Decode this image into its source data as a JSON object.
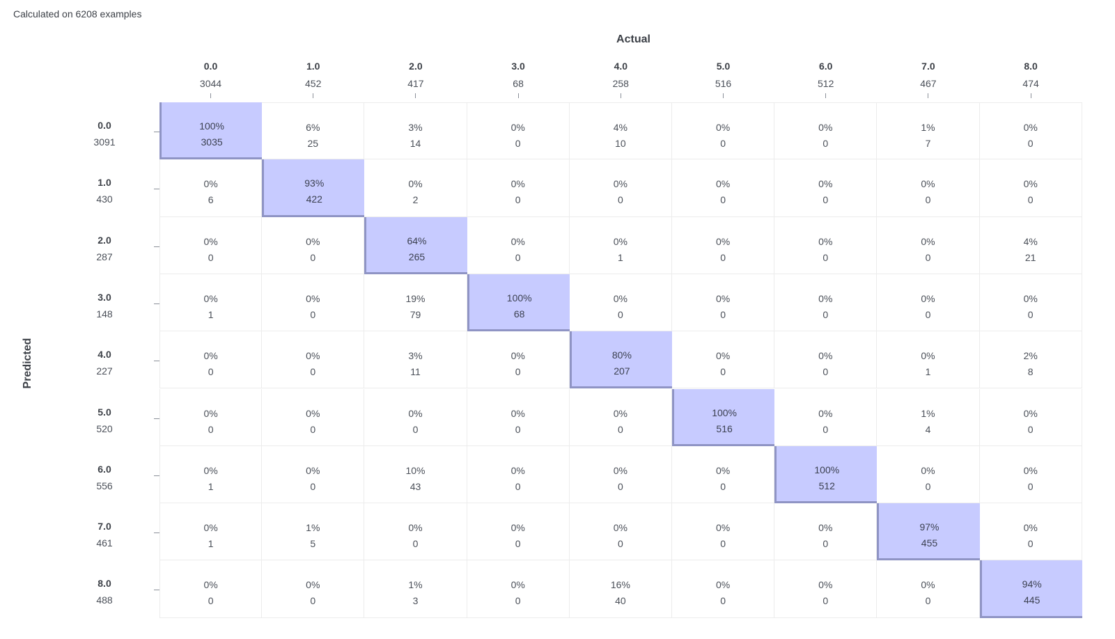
{
  "summary": "Calculated on 6208 examples",
  "chart_data": {
    "type": "heatmap",
    "xlabel": "Actual",
    "ylabel": "Predicted",
    "columns": [
      {
        "label": "0.0",
        "count": "3044"
      },
      {
        "label": "1.0",
        "count": "452"
      },
      {
        "label": "2.0",
        "count": "417"
      },
      {
        "label": "3.0",
        "count": "68"
      },
      {
        "label": "4.0",
        "count": "258"
      },
      {
        "label": "5.0",
        "count": "516"
      },
      {
        "label": "6.0",
        "count": "512"
      },
      {
        "label": "7.0",
        "count": "467"
      },
      {
        "label": "8.0",
        "count": "474"
      }
    ],
    "rows": [
      {
        "label": "0.0",
        "count": "3091"
      },
      {
        "label": "1.0",
        "count": "430"
      },
      {
        "label": "2.0",
        "count": "287"
      },
      {
        "label": "3.0",
        "count": "148"
      },
      {
        "label": "4.0",
        "count": "227"
      },
      {
        "label": "5.0",
        "count": "520"
      },
      {
        "label": "6.0",
        "count": "556"
      },
      {
        "label": "7.0",
        "count": "461"
      },
      {
        "label": "8.0",
        "count": "488"
      }
    ],
    "cells": [
      [
        {
          "pct": "100%",
          "n": "3035"
        },
        {
          "pct": "6%",
          "n": "25"
        },
        {
          "pct": "3%",
          "n": "14"
        },
        {
          "pct": "0%",
          "n": "0"
        },
        {
          "pct": "4%",
          "n": "10"
        },
        {
          "pct": "0%",
          "n": "0"
        },
        {
          "pct": "0%",
          "n": "0"
        },
        {
          "pct": "1%",
          "n": "7"
        },
        {
          "pct": "0%",
          "n": "0"
        }
      ],
      [
        {
          "pct": "0%",
          "n": "6"
        },
        {
          "pct": "93%",
          "n": "422"
        },
        {
          "pct": "0%",
          "n": "2"
        },
        {
          "pct": "0%",
          "n": "0"
        },
        {
          "pct": "0%",
          "n": "0"
        },
        {
          "pct": "0%",
          "n": "0"
        },
        {
          "pct": "0%",
          "n": "0"
        },
        {
          "pct": "0%",
          "n": "0"
        },
        {
          "pct": "0%",
          "n": "0"
        }
      ],
      [
        {
          "pct": "0%",
          "n": "0"
        },
        {
          "pct": "0%",
          "n": "0"
        },
        {
          "pct": "64%",
          "n": "265"
        },
        {
          "pct": "0%",
          "n": "0"
        },
        {
          "pct": "0%",
          "n": "1"
        },
        {
          "pct": "0%",
          "n": "0"
        },
        {
          "pct": "0%",
          "n": "0"
        },
        {
          "pct": "0%",
          "n": "0"
        },
        {
          "pct": "4%",
          "n": "21"
        }
      ],
      [
        {
          "pct": "0%",
          "n": "1"
        },
        {
          "pct": "0%",
          "n": "0"
        },
        {
          "pct": "19%",
          "n": "79"
        },
        {
          "pct": "100%",
          "n": "68"
        },
        {
          "pct": "0%",
          "n": "0"
        },
        {
          "pct": "0%",
          "n": "0"
        },
        {
          "pct": "0%",
          "n": "0"
        },
        {
          "pct": "0%",
          "n": "0"
        },
        {
          "pct": "0%",
          "n": "0"
        }
      ],
      [
        {
          "pct": "0%",
          "n": "0"
        },
        {
          "pct": "0%",
          "n": "0"
        },
        {
          "pct": "3%",
          "n": "11"
        },
        {
          "pct": "0%",
          "n": "0"
        },
        {
          "pct": "80%",
          "n": "207"
        },
        {
          "pct": "0%",
          "n": "0"
        },
        {
          "pct": "0%",
          "n": "0"
        },
        {
          "pct": "0%",
          "n": "1"
        },
        {
          "pct": "2%",
          "n": "8"
        }
      ],
      [
        {
          "pct": "0%",
          "n": "0"
        },
        {
          "pct": "0%",
          "n": "0"
        },
        {
          "pct": "0%",
          "n": "0"
        },
        {
          "pct": "0%",
          "n": "0"
        },
        {
          "pct": "0%",
          "n": "0"
        },
        {
          "pct": "100%",
          "n": "516"
        },
        {
          "pct": "0%",
          "n": "0"
        },
        {
          "pct": "1%",
          "n": "4"
        },
        {
          "pct": "0%",
          "n": "0"
        }
      ],
      [
        {
          "pct": "0%",
          "n": "1"
        },
        {
          "pct": "0%",
          "n": "0"
        },
        {
          "pct": "10%",
          "n": "43"
        },
        {
          "pct": "0%",
          "n": "0"
        },
        {
          "pct": "0%",
          "n": "0"
        },
        {
          "pct": "0%",
          "n": "0"
        },
        {
          "pct": "100%",
          "n": "512"
        },
        {
          "pct": "0%",
          "n": "0"
        },
        {
          "pct": "0%",
          "n": "0"
        }
      ],
      [
        {
          "pct": "0%",
          "n": "1"
        },
        {
          "pct": "1%",
          "n": "5"
        },
        {
          "pct": "0%",
          "n": "0"
        },
        {
          "pct": "0%",
          "n": "0"
        },
        {
          "pct": "0%",
          "n": "0"
        },
        {
          "pct": "0%",
          "n": "0"
        },
        {
          "pct": "0%",
          "n": "0"
        },
        {
          "pct": "97%",
          "n": "455"
        },
        {
          "pct": "0%",
          "n": "0"
        }
      ],
      [
        {
          "pct": "0%",
          "n": "0"
        },
        {
          "pct": "0%",
          "n": "0"
        },
        {
          "pct": "1%",
          "n": "3"
        },
        {
          "pct": "0%",
          "n": "0"
        },
        {
          "pct": "16%",
          "n": "40"
        },
        {
          "pct": "0%",
          "n": "0"
        },
        {
          "pct": "0%",
          "n": "0"
        },
        {
          "pct": "0%",
          "n": "0"
        },
        {
          "pct": "94%",
          "n": "445"
        }
      ]
    ],
    "highlight_color": "#c7cbff",
    "highlight_border_color": "#8f94c4"
  }
}
